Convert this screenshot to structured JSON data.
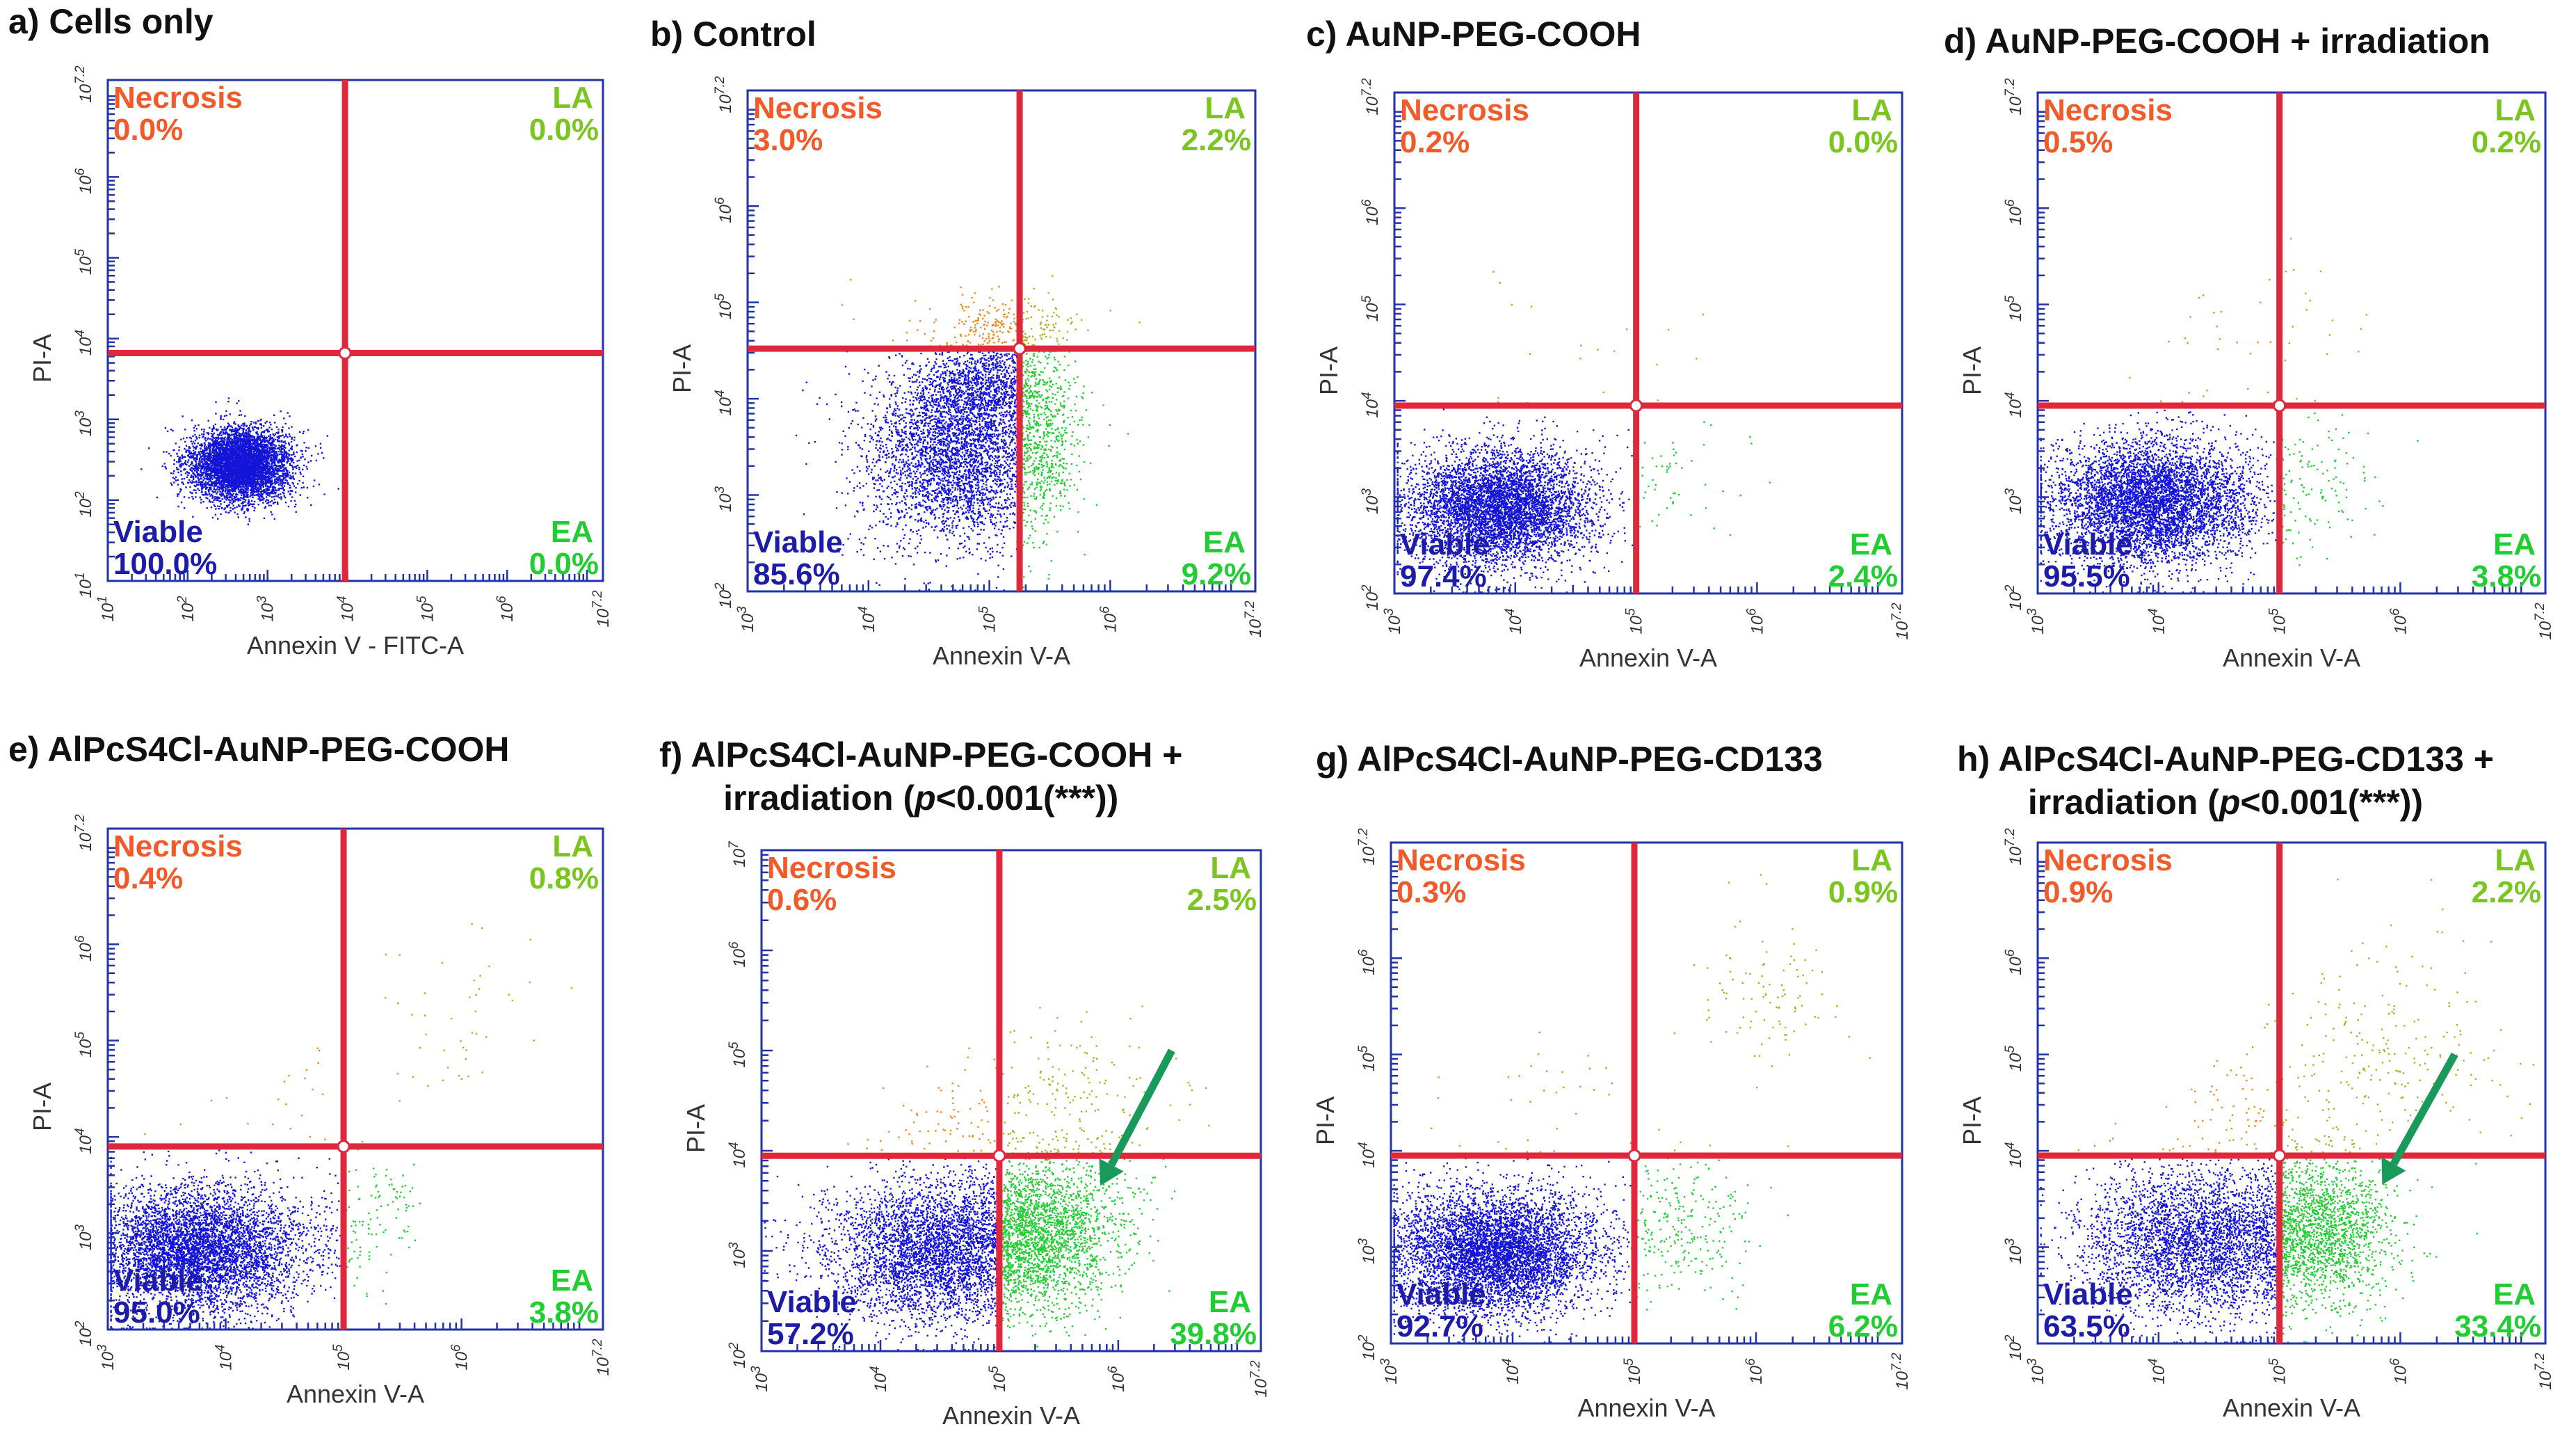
{
  "figure": {
    "panels": [
      {
        "id": "a",
        "title": "a) Cells only"
      },
      {
        "id": "b",
        "title": "b) Control"
      },
      {
        "id": "c",
        "title": "c) AuNP-PEG-COOH"
      },
      {
        "id": "d",
        "title": "d) AuNP-PEG-COOH + irradiation"
      },
      {
        "id": "e",
        "title": "e) AlPcS4Cl-AuNP-PEG-COOH"
      },
      {
        "id": "f",
        "title_line1": "f) AlPcS4Cl-AuNP-PEG-COOH +",
        "title_line2_pre": "irradiation (",
        "title_line2_italic": "p",
        "title_line2_post": "<0.001(***))"
      },
      {
        "id": "g",
        "title": "g) AlPcS4Cl-AuNP-PEG-CD133"
      },
      {
        "id": "h",
        "title_line1": "h) AlPcS4Cl-AuNP-PEG-CD133 +",
        "title_line2_pre": "irradiation (",
        "title_line2_italic": "p",
        "title_line2_post": "<0.001(***))"
      }
    ]
  },
  "chart_data": [
    {
      "id": "a",
      "type": "scatter",
      "title": "a) Cells only",
      "xlabel": "Annexin V - FITC-A",
      "ylabel": "PI-A",
      "xlim": [
        1,
        7.2
      ],
      "ylim": [
        1,
        7.2
      ],
      "x_ticks": [
        "10^1",
        "10^2",
        "10^3",
        "10^4",
        "10^5",
        "10^6",
        "10^7.2"
      ],
      "y_ticks": [
        "10^1",
        "10^2",
        "10^3",
        "10^4",
        "10^5",
        "10^6",
        "10^7.2"
      ],
      "x_tick_values": [
        1,
        2,
        3,
        4,
        5,
        6,
        7.2
      ],
      "y_tick_values": [
        1,
        2,
        3,
        4,
        5,
        6,
        7.2
      ],
      "gate": {
        "x": 3.97,
        "y": 3.82
      },
      "quadrants": {
        "necrosis": {
          "label": "Necrosis",
          "value": "0.0%"
        },
        "la": {
          "label": "LA",
          "value": "0.0%"
        },
        "viable": {
          "label": "Viable",
          "value": "100.0%"
        },
        "ea": {
          "label": "EA",
          "value": "0.0%"
        }
      },
      "arrow": false
    },
    {
      "id": "b",
      "type": "scatter",
      "title": "b) Control",
      "xlabel": "Annexin V-A",
      "ylabel": "PI-A",
      "xlim": [
        3,
        7.2
      ],
      "ylim": [
        2,
        7.2
      ],
      "x_ticks": [
        "10^3",
        "10^4",
        "10^5",
        "10^6",
        "10^7.2"
      ],
      "y_ticks": [
        "10^2",
        "10^3",
        "10^4",
        "10^5",
        "10^6",
        "10^7.2"
      ],
      "x_tick_values": [
        3,
        4,
        5,
        6,
        7.2
      ],
      "y_tick_values": [
        2,
        3,
        4,
        5,
        6,
        7.2
      ],
      "gate": {
        "x": 5.25,
        "y": 4.52
      },
      "quadrants": {
        "necrosis": {
          "label": "Necrosis",
          "value": "3.0%"
        },
        "la": {
          "label": "LA",
          "value": "2.2%"
        },
        "viable": {
          "label": "Viable",
          "value": "85.6%"
        },
        "ea": {
          "label": "EA",
          "value": "9.2%"
        }
      },
      "arrow": false
    },
    {
      "id": "c",
      "type": "scatter",
      "title": "c) AuNP-PEG-COOH",
      "xlabel": "Annexin V-A",
      "ylabel": "PI-A",
      "xlim": [
        3,
        7.2
      ],
      "ylim": [
        2,
        7.2
      ],
      "x_ticks": [
        "10^3",
        "10^4",
        "10^5",
        "10^6",
        "10^7.2"
      ],
      "y_ticks": [
        "10^2",
        "10^3",
        "10^4",
        "10^5",
        "10^6",
        "10^7.2"
      ],
      "x_tick_values": [
        3,
        4,
        5,
        6,
        7.2
      ],
      "y_tick_values": [
        2,
        3,
        4,
        5,
        6,
        7.2
      ],
      "gate": {
        "x": 5.0,
        "y": 3.95
      },
      "quadrants": {
        "necrosis": {
          "label": "Necrosis",
          "value": "0.2%"
        },
        "la": {
          "label": "LA",
          "value": "0.0%"
        },
        "viable": {
          "label": "Viable",
          "value": "97.4%"
        },
        "ea": {
          "label": "EA",
          "value": "2.4%"
        }
      },
      "arrow": false
    },
    {
      "id": "d",
      "type": "scatter",
      "title": "d) AuNP-PEG-COOH + irradiation",
      "xlabel": "Annexin V-A",
      "ylabel": "PI-A",
      "xlim": [
        3,
        7.2
      ],
      "ylim": [
        2,
        7.2
      ],
      "x_ticks": [
        "10^3",
        "10^4",
        "10^5",
        "10^6",
        "10^7.2"
      ],
      "y_ticks": [
        "10^2",
        "10^3",
        "10^4",
        "10^5",
        "10^6",
        "10^7.2"
      ],
      "x_tick_values": [
        3,
        4,
        5,
        6,
        7.2
      ],
      "y_tick_values": [
        2,
        3,
        4,
        5,
        6,
        7.2
      ],
      "gate": {
        "x": 5.0,
        "y": 3.95
      },
      "quadrants": {
        "necrosis": {
          "label": "Necrosis",
          "value": "0.5%"
        },
        "la": {
          "label": "LA",
          "value": "0.2%"
        },
        "viable": {
          "label": "Viable",
          "value": "95.5%"
        },
        "ea": {
          "label": "EA",
          "value": "3.8%"
        }
      },
      "arrow": false
    },
    {
      "id": "e",
      "type": "scatter",
      "title": "e) AlPcS4Cl-AuNP-PEG-COOH",
      "xlabel": "Annexin V-A",
      "ylabel": "PI-A",
      "xlim": [
        3,
        7.2
      ],
      "ylim": [
        2,
        7.2
      ],
      "x_ticks": [
        "10^3",
        "10^4",
        "10^5",
        "10^6",
        "10^7.2"
      ],
      "y_ticks": [
        "10^2",
        "10^3",
        "10^4",
        "10^5",
        "10^6",
        "10^7.2"
      ],
      "x_tick_values": [
        3,
        4,
        5,
        6,
        7.2
      ],
      "y_tick_values": [
        2,
        3,
        4,
        5,
        6,
        7.2
      ],
      "gate": {
        "x": 5.0,
        "y": 3.9
      },
      "quadrants": {
        "necrosis": {
          "label": "Necrosis",
          "value": "0.4%"
        },
        "la": {
          "label": "LA",
          "value": "0.8%"
        },
        "viable": {
          "label": "Viable",
          "value": "95.0%"
        },
        "ea": {
          "label": "EA",
          "value": "3.8%"
        }
      },
      "arrow": false
    },
    {
      "id": "f",
      "type": "scatter",
      "title": "f) AlPcS4Cl-AuNP-PEG-COOH + irradiation (p<0.001(***))",
      "xlabel": "Annexin V-A",
      "ylabel": "PI-A",
      "xlim": [
        3,
        7.2
      ],
      "ylim": [
        2,
        7
      ],
      "x_ticks": [
        "10^3",
        "10^4",
        "10^5",
        "10^6",
        "10^7.2"
      ],
      "y_ticks": [
        "10^2",
        "10^3",
        "10^4",
        "10^5",
        "10^6",
        "10^7"
      ],
      "x_tick_values": [
        3,
        4,
        5,
        6,
        7.2
      ],
      "y_tick_values": [
        2,
        3,
        4,
        5,
        6,
        7
      ],
      "gate": {
        "x": 5.0,
        "y": 3.95
      },
      "quadrants": {
        "necrosis": {
          "label": "Necrosis",
          "value": "0.6%"
        },
        "la": {
          "label": "LA",
          "value": "2.5%"
        },
        "viable": {
          "label": "Viable",
          "value": "57.2%"
        },
        "ea": {
          "label": "EA",
          "value": "39.8%"
        }
      },
      "arrow": true
    },
    {
      "id": "g",
      "type": "scatter",
      "title": "g) AlPcS4Cl-AuNP-PEG-CD133",
      "xlabel": "Annexin V-A",
      "ylabel": "PI-A",
      "xlim": [
        3,
        7.2
      ],
      "ylim": [
        2,
        7.2
      ],
      "x_ticks": [
        "10^3",
        "10^4",
        "10^5",
        "10^6",
        "10^7.2"
      ],
      "y_ticks": [
        "10^2",
        "10^3",
        "10^4",
        "10^5",
        "10^6",
        "10^7.2"
      ],
      "x_tick_values": [
        3,
        4,
        5,
        6,
        7.2
      ],
      "y_tick_values": [
        2,
        3,
        4,
        5,
        6,
        7.2
      ],
      "gate": {
        "x": 5.0,
        "y": 3.95
      },
      "quadrants": {
        "necrosis": {
          "label": "Necrosis",
          "value": "0.3%"
        },
        "la": {
          "label": "LA",
          "value": "0.9%"
        },
        "viable": {
          "label": "Viable",
          "value": "92.7%"
        },
        "ea": {
          "label": "EA",
          "value": "6.2%"
        }
      },
      "arrow": false
    },
    {
      "id": "h",
      "type": "scatter",
      "title": "h) AlPcS4Cl-AuNP-PEG-CD133 + irradiation (p<0.001(***))",
      "xlabel": "Annexin V-A",
      "ylabel": "PI-A",
      "xlim": [
        3,
        7.2
      ],
      "ylim": [
        2,
        7.2
      ],
      "x_ticks": [
        "10^3",
        "10^4",
        "10^5",
        "10^6",
        "10^7.2"
      ],
      "y_ticks": [
        "10^2",
        "10^3",
        "10^4",
        "10^5",
        "10^6",
        "10^7.2"
      ],
      "x_tick_values": [
        3,
        4,
        5,
        6,
        7.2
      ],
      "y_tick_values": [
        2,
        3,
        4,
        5,
        6,
        7.2
      ],
      "gate": {
        "x": 5.0,
        "y": 3.95
      },
      "quadrants": {
        "necrosis": {
          "label": "Necrosis",
          "value": "0.9%"
        },
        "la": {
          "label": "LA",
          "value": "2.2%"
        },
        "viable": {
          "label": "Viable",
          "value": "63.5%"
        },
        "ea": {
          "label": "EA",
          "value": "33.4%"
        }
      },
      "arrow": true
    }
  ],
  "colors": {
    "gate_line": "#e0283c",
    "frame": "#2233aa",
    "necrosis": "#f25a2a",
    "la": "#7ac520",
    "viable": "#1c1ca8",
    "ea": "#22cc33",
    "viable_dots": "#1414d8",
    "ea_dots": "#22cc33",
    "la_dots": "#a8b020",
    "necrosis_dots": "#e88a20",
    "arrow": "#1a9a5a",
    "axis_text": "#333333"
  }
}
